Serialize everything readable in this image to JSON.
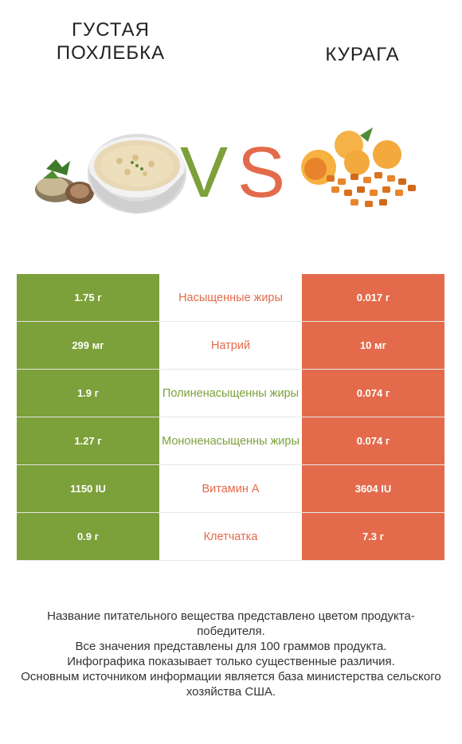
{
  "colors": {
    "green": "#7ca03a",
    "red": "#e36b4b",
    "divider": "#e6e6e6"
  },
  "header": {
    "left_title": "ГУСТАЯ ПОХЛЕБКА",
    "right_title": "КУРАГА",
    "vs_v": "V",
    "vs_s": "S"
  },
  "rows": [
    {
      "left": "1.75 г",
      "name": "Насыщенные жиры",
      "right": "0.017 г",
      "winner": "red"
    },
    {
      "left": "299 мг",
      "name": "Натрий",
      "right": "10 мг",
      "winner": "red"
    },
    {
      "left": "1.9 г",
      "name": "Полиненасыщенны жиры",
      "right": "0.074 г",
      "winner": "green"
    },
    {
      "left": "1.27 г",
      "name": "Мононенасыщенны жиры",
      "right": "0.074 г",
      "winner": "green"
    },
    {
      "left": "1150 IU",
      "name": "Витамин А",
      "right": "3604 IU",
      "winner": "red"
    },
    {
      "left": "0.9 г",
      "name": "Клетчатка",
      "right": "7.3 г",
      "winner": "red"
    }
  ],
  "footer": {
    "line1": "Название питательного вещества представлено цветом продукта-победителя.",
    "line2": "Все значения представлены для 100 граммов продукта.",
    "line3": "Инфографика показывает только существенные различия.",
    "line4": "Основным источником информации является база министерства сельского хозяйства США."
  }
}
